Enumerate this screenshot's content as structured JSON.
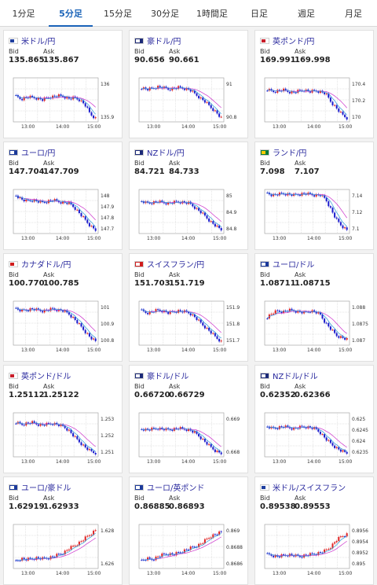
{
  "tabs": [
    "1分足",
    "5分足",
    "15分足",
    "30分足",
    "1時間足",
    "日足",
    "週足",
    "月足"
  ],
  "active_tab": 1,
  "bid_label": "Bid",
  "ask_label": "Ask",
  "x_ticks": [
    "13:00",
    "14:00",
    "15:00"
  ],
  "colors": {
    "up": "#e02020",
    "down": "#1a1acc",
    "ma_short": "#2a9bd6",
    "ma_long": "#cc33cc"
  },
  "cards": [
    {
      "name": "usd-jpy",
      "pair": "米ドル/円",
      "flag": [
        "#ffffff",
        "#1f3f9f"
      ],
      "bid": "135.865",
      "ask": "135.867",
      "ticks": [
        "136",
        "135.9"
      ],
      "trend": [
        0.42,
        0.48,
        0.43,
        0.44,
        0.46,
        0.5,
        0.44,
        0.42,
        0.4,
        0.42,
        0.47,
        0.45,
        0.5,
        0.62,
        0.85,
        0.95
      ]
    },
    {
      "name": "aud-jpy",
      "pair": "豪ドル/円",
      "flag": [
        "#1c2a78",
        "#ffffff"
      ],
      "bid": "90.656",
      "ask": "90.661",
      "ticks": [
        "91",
        "90.8"
      ],
      "trend": [
        0.2,
        0.25,
        0.22,
        0.18,
        0.2,
        0.24,
        0.22,
        0.2,
        0.22,
        0.25,
        0.35,
        0.45,
        0.55,
        0.68,
        0.8,
        0.95
      ]
    },
    {
      "name": "gbp-jpy",
      "pair": "英ポンド/円",
      "flag": [
        "#ffffff",
        "#c81e2a"
      ],
      "bid": "169.991",
      "ask": "169.998",
      "ticks": [
        "170.4",
        "170.2",
        "170"
      ],
      "trend": [
        0.25,
        0.3,
        0.28,
        0.26,
        0.3,
        0.32,
        0.28,
        0.26,
        0.3,
        0.28,
        0.3,
        0.35,
        0.55,
        0.7,
        0.85,
        0.95
      ]
    },
    {
      "name": "eur-jpy",
      "pair": "ユーロ/円",
      "flag": [
        "#1c3a9a",
        "#ffffff"
      ],
      "bid": "147.704",
      "ask": "147.709",
      "ticks": [
        "148",
        "147.9",
        "147.8",
        "147.7"
      ],
      "trend": [
        0.1,
        0.2,
        0.25,
        0.22,
        0.25,
        0.28,
        0.25,
        0.22,
        0.26,
        0.28,
        0.3,
        0.4,
        0.55,
        0.7,
        0.85,
        0.95
      ]
    },
    {
      "name": "nzd-jpy",
      "pair": "NZドル/円",
      "flag": [
        "#1c2a78",
        "#ffffff"
      ],
      "bid": "84.721",
      "ask": "84.733",
      "ticks": [
        "85",
        "84.9",
        "84.8"
      ],
      "trend": [
        0.25,
        0.3,
        0.28,
        0.26,
        0.28,
        0.3,
        0.28,
        0.26,
        0.28,
        0.3,
        0.4,
        0.5,
        0.62,
        0.75,
        0.86,
        0.95
      ]
    },
    {
      "name": "zar-jpy",
      "pair": "ランド/円",
      "flag": [
        "#0a7a3a",
        "#ffcc00"
      ],
      "bid": "7.098",
      "ask": "7.107",
      "ticks": [
        "7.14",
        "7.12",
        "7.1"
      ],
      "trend": [
        0.05,
        0.1,
        0.08,
        0.06,
        0.08,
        0.1,
        0.08,
        0.06,
        0.08,
        0.1,
        0.1,
        0.2,
        0.45,
        0.7,
        0.85,
        0.95
      ]
    },
    {
      "name": "cad-jpy",
      "pair": "カナダドル/円",
      "flag": [
        "#ffffff",
        "#d01e1e"
      ],
      "bid": "100.770",
      "ask": "100.785",
      "ticks": [
        "101",
        "100.9",
        "100.8"
      ],
      "trend": [
        0.15,
        0.2,
        0.18,
        0.15,
        0.18,
        0.2,
        0.18,
        0.15,
        0.18,
        0.2,
        0.28,
        0.4,
        0.55,
        0.7,
        0.85,
        0.95
      ]
    },
    {
      "name": "chf-jpy",
      "pair": "スイスフラン/円",
      "flag": [
        "#d01e1e",
        "#ffffff"
      ],
      "bid": "151.703",
      "ask": "151.719",
      "ticks": [
        "151.9",
        "151.8",
        "151.7"
      ],
      "trend": [
        0.2,
        0.25,
        0.22,
        0.18,
        0.2,
        0.25,
        0.22,
        0.2,
        0.22,
        0.25,
        0.35,
        0.48,
        0.6,
        0.72,
        0.85,
        0.95
      ]
    },
    {
      "name": "eur-usd",
      "pair": "ユーロ/ドル",
      "flag": [
        "#1c3a9a",
        "#ffffff"
      ],
      "bid": "1.08711",
      "ask": "1.08715",
      "ticks": [
        "1.088",
        "1.0875",
        "1.087"
      ],
      "trend": [
        0.35,
        0.25,
        0.2,
        0.22,
        0.18,
        0.2,
        0.22,
        0.25,
        0.2,
        0.22,
        0.3,
        0.5,
        0.65,
        0.8,
        0.85,
        0.9
      ]
    },
    {
      "name": "gbp-usd",
      "pair": "英ポンド/ドル",
      "flag": [
        "#ffffff",
        "#c81e2a"
      ],
      "bid": "1.25112",
      "ask": "1.25122",
      "ticks": [
        "1.253",
        "1.252",
        "1.251"
      ],
      "trend": [
        0.2,
        0.25,
        0.22,
        0.2,
        0.24,
        0.26,
        0.24,
        0.22,
        0.26,
        0.3,
        0.4,
        0.55,
        0.68,
        0.8,
        0.9,
        0.95
      ]
    },
    {
      "name": "aud-usd",
      "pair": "豪ドル/ドル",
      "flag": [
        "#1c2a78",
        "#ffffff"
      ],
      "bid": "0.66720",
      "ask": "0.66729",
      "ticks": [
        "0.669",
        "0.668"
      ],
      "trend": [
        0.35,
        0.38,
        0.36,
        0.34,
        0.36,
        0.38,
        0.36,
        0.34,
        0.36,
        0.38,
        0.45,
        0.55,
        0.68,
        0.8,
        0.9,
        0.95
      ]
    },
    {
      "name": "nzd-usd",
      "pair": "NZドル/ドル",
      "flag": [
        "#1c2a78",
        "#ffffff"
      ],
      "bid": "0.62352",
      "ask": "0.62366",
      "ticks": [
        "0.625",
        "0.6245",
        "0.624",
        "0.6235"
      ],
      "trend": [
        0.3,
        0.35,
        0.32,
        0.3,
        0.32,
        0.35,
        0.32,
        0.3,
        0.32,
        0.35,
        0.45,
        0.6,
        0.72,
        0.82,
        0.9,
        0.95
      ]
    },
    {
      "name": "eur-aud",
      "pair": "ユーロ/豪ドル",
      "flag": [
        "#1c3a9a",
        "#ffffff"
      ],
      "bid": "1.62919",
      "ask": "1.62933",
      "ticks": [
        "1.628",
        "1.626"
      ],
      "trend": [
        0.85,
        0.8,
        0.82,
        0.8,
        0.78,
        0.8,
        0.78,
        0.75,
        0.7,
        0.65,
        0.55,
        0.48,
        0.4,
        0.3,
        0.2,
        0.1
      ]
    },
    {
      "name": "eur-gbp",
      "pair": "ユーロ/英ポンド",
      "flag": [
        "#1c3a9a",
        "#ffffff"
      ],
      "bid": "0.86885",
      "ask": "0.86893",
      "ticks": [
        "0.869",
        "0.8688",
        "0.8686"
      ],
      "trend": [
        0.85,
        0.8,
        0.82,
        0.75,
        0.7,
        0.68,
        0.7,
        0.65,
        0.6,
        0.55,
        0.5,
        0.45,
        0.35,
        0.25,
        0.2,
        0.15
      ]
    },
    {
      "name": "usd-chf",
      "pair": "米ドル/スイスフラン",
      "flag": [
        "#ffffff",
        "#1f3f9f"
      ],
      "bid": "0.89538",
      "ask": "0.89553",
      "ticks": [
        "0.8956",
        "0.8954",
        "0.8952",
        "0.895"
      ],
      "trend": [
        0.7,
        0.72,
        0.75,
        0.72,
        0.7,
        0.72,
        0.75,
        0.72,
        0.7,
        0.68,
        0.65,
        0.6,
        0.5,
        0.35,
        0.25,
        0.2
      ]
    }
  ]
}
